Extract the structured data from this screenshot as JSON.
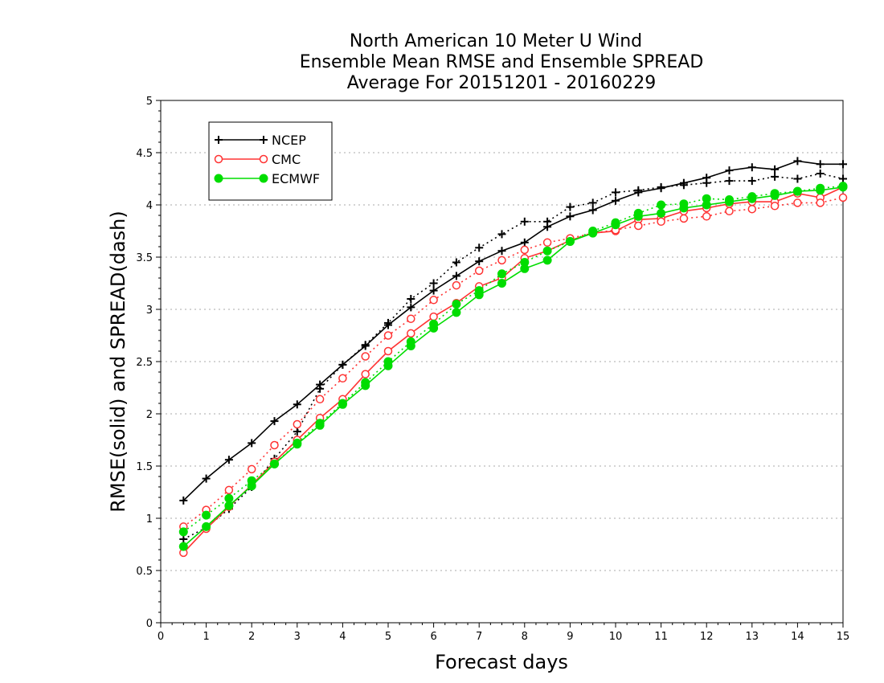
{
  "chart_data": {
    "type": "line",
    "title_lines": [
      "North American 10 Meter U Wind",
      "Ensemble Mean RMSE and Ensemble SPREAD",
      "Average For 20151201 - 20160229"
    ],
    "xlabel": "Forecast days",
    "ylabel": "RMSE(solid) and SPREAD(dash)",
    "xlim": [
      0,
      15
    ],
    "ylim": [
      0,
      5
    ],
    "x_ticks": [
      "0",
      "1",
      "2",
      "3",
      "4",
      "5",
      "6",
      "7",
      "8",
      "9",
      "10",
      "11",
      "12",
      "13",
      "14",
      "15"
    ],
    "y_ticks": [
      "0",
      "0.5",
      "1",
      "1.5",
      "2",
      "2.5",
      "3",
      "3.5",
      "4",
      "4.5",
      "5"
    ],
    "y_grid": true,
    "legend_placement": "top-left",
    "legend": [
      "NCEP",
      "CMC",
      "ECMWF"
    ],
    "x": [
      0.5,
      1,
      1.5,
      2,
      2.5,
      3,
      3.5,
      4,
      4.5,
      5,
      5.5,
      6,
      6.5,
      7,
      7.5,
      8,
      8.5,
      9,
      9.5,
      10,
      10.5,
      11,
      11.5,
      12,
      12.5,
      13,
      13.5,
      14,
      14.5,
      15
    ],
    "series": [
      {
        "name": "NCEP",
        "metric": "RMSE",
        "style": "solid",
        "marker": "plus",
        "color": "#000000",
        "values": [
          1.17,
          1.38,
          1.56,
          1.72,
          1.93,
          2.09,
          2.28,
          2.47,
          2.65,
          2.85,
          3.02,
          3.18,
          3.32,
          3.46,
          3.56,
          3.64,
          3.79,
          3.89,
          3.95,
          4.04,
          4.12,
          4.16,
          4.21,
          4.26,
          4.33,
          4.36,
          4.34,
          4.42,
          4.39,
          4.39
        ]
      },
      {
        "name": "NCEP",
        "metric": "SPREAD",
        "style": "dash",
        "marker": "plus",
        "color": "#000000",
        "values": [
          0.8,
          0.91,
          1.09,
          1.3,
          1.57,
          1.83,
          2.24,
          2.47,
          2.66,
          2.87,
          3.1,
          3.25,
          3.45,
          3.59,
          3.72,
          3.84,
          3.84,
          3.98,
          4.02,
          4.12,
          4.14,
          4.17,
          4.19,
          4.21,
          4.23,
          4.23,
          4.27,
          4.25,
          4.3,
          4.25
        ]
      },
      {
        "name": "CMC",
        "metric": "RMSE",
        "style": "solid",
        "marker": "open-circle",
        "color": "#ff3333",
        "values": [
          0.67,
          0.9,
          1.11,
          1.32,
          1.54,
          1.75,
          1.96,
          2.14,
          2.38,
          2.6,
          2.77,
          2.93,
          3.06,
          3.22,
          3.3,
          3.49,
          3.56,
          3.66,
          3.73,
          3.75,
          3.86,
          3.87,
          3.94,
          3.97,
          4.01,
          4.03,
          4.03,
          4.11,
          4.07,
          4.17
        ]
      },
      {
        "name": "CMC",
        "metric": "SPREAD",
        "style": "dash",
        "marker": "open-circle",
        "color": "#ff3333",
        "values": [
          0.92,
          1.08,
          1.27,
          1.47,
          1.7,
          1.9,
          2.14,
          2.34,
          2.55,
          2.75,
          2.91,
          3.09,
          3.23,
          3.37,
          3.47,
          3.57,
          3.64,
          3.68,
          3.73,
          3.76,
          3.8,
          3.84,
          3.87,
          3.89,
          3.94,
          3.96,
          3.99,
          4.02,
          4.02,
          4.07
        ]
      },
      {
        "name": "ECMWF",
        "metric": "RMSE",
        "style": "solid",
        "marker": "filled-circle",
        "color": "#00dd00",
        "values": [
          0.73,
          0.92,
          1.12,
          1.31,
          1.52,
          1.71,
          1.89,
          2.09,
          2.27,
          2.46,
          2.65,
          2.82,
          2.97,
          3.14,
          3.25,
          3.39,
          3.47,
          3.65,
          3.73,
          3.81,
          3.89,
          3.92,
          3.97,
          4.0,
          4.03,
          4.06,
          4.09,
          4.13,
          4.14,
          4.17
        ]
      },
      {
        "name": "ECMWF",
        "metric": "SPREAD",
        "style": "dash",
        "marker": "filled-circle",
        "color": "#00dd00",
        "values": [
          0.87,
          1.03,
          1.19,
          1.36,
          1.52,
          1.72,
          1.91,
          2.1,
          2.3,
          2.5,
          2.69,
          2.86,
          3.05,
          3.18,
          3.34,
          3.45,
          3.56,
          3.65,
          3.75,
          3.83,
          3.92,
          4.0,
          4.01,
          4.06,
          4.05,
          4.08,
          4.11,
          4.13,
          4.16,
          4.18
        ]
      }
    ]
  }
}
